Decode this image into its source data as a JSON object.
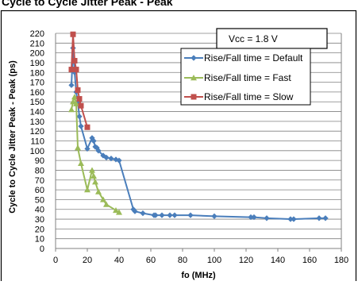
{
  "top_caption": "Cycle to Cycle Jitter Peak - Peak",
  "chart_data": {
    "type": "line",
    "title": "",
    "xlabel": "fo (MHz)",
    "ylabel": "Cycle to Cycle Jitter Peak - Peak (ps)",
    "xlim": [
      0,
      180
    ],
    "ylim": [
      0,
      220
    ],
    "xticks": [
      0,
      20,
      40,
      60,
      80,
      100,
      120,
      140,
      160,
      180
    ],
    "yticks": [
      0,
      10,
      20,
      30,
      40,
      50,
      60,
      70,
      80,
      90,
      100,
      110,
      120,
      130,
      140,
      150,
      160,
      170,
      180,
      190,
      200,
      210,
      220
    ],
    "grid": "horizontal",
    "legend_position": "top-right",
    "annotation": "Vcc = 1.8 V",
    "series": [
      {
        "name": "Rise/Fall time = Default",
        "color": "#4A7EBB",
        "marker": "diamond",
        "x": [
          10,
          11,
          12,
          13,
          14,
          15,
          16,
          20,
          23,
          24,
          25,
          26,
          27,
          30,
          32,
          35,
          38,
          40,
          49,
          50,
          55,
          62,
          63,
          67,
          72,
          75,
          85,
          100,
          123,
          125,
          133,
          148,
          150,
          166,
          170
        ],
        "y": [
          167,
          205,
          180,
          160,
          150,
          135,
          125,
          102,
          113,
          110,
          104,
          103,
          100,
          95,
          93,
          92,
          91,
          90,
          40,
          38,
          36,
          34,
          34,
          34,
          34,
          34,
          34,
          33,
          32,
          32,
          31,
          30,
          30,
          31,
          31
        ]
      },
      {
        "name": "Rise/Fall time = Fast",
        "color": "#9BBB59",
        "marker": "triangle",
        "x": [
          10,
          11,
          12,
          13,
          14,
          16,
          20,
          23,
          24,
          25,
          27,
          30,
          32,
          38,
          40
        ],
        "y": [
          142,
          150,
          155,
          148,
          103,
          87,
          60,
          80,
          74,
          68,
          58,
          50,
          45,
          39,
          37
        ]
      },
      {
        "name": "Rise/Fall time = Slow",
        "color": "#C0504D",
        "marker": "square",
        "x": [
          10,
          11,
          12,
          13,
          14,
          15,
          16,
          20
        ],
        "y": [
          183,
          219,
          192,
          183,
          162,
          153,
          146,
          124
        ]
      }
    ]
  }
}
